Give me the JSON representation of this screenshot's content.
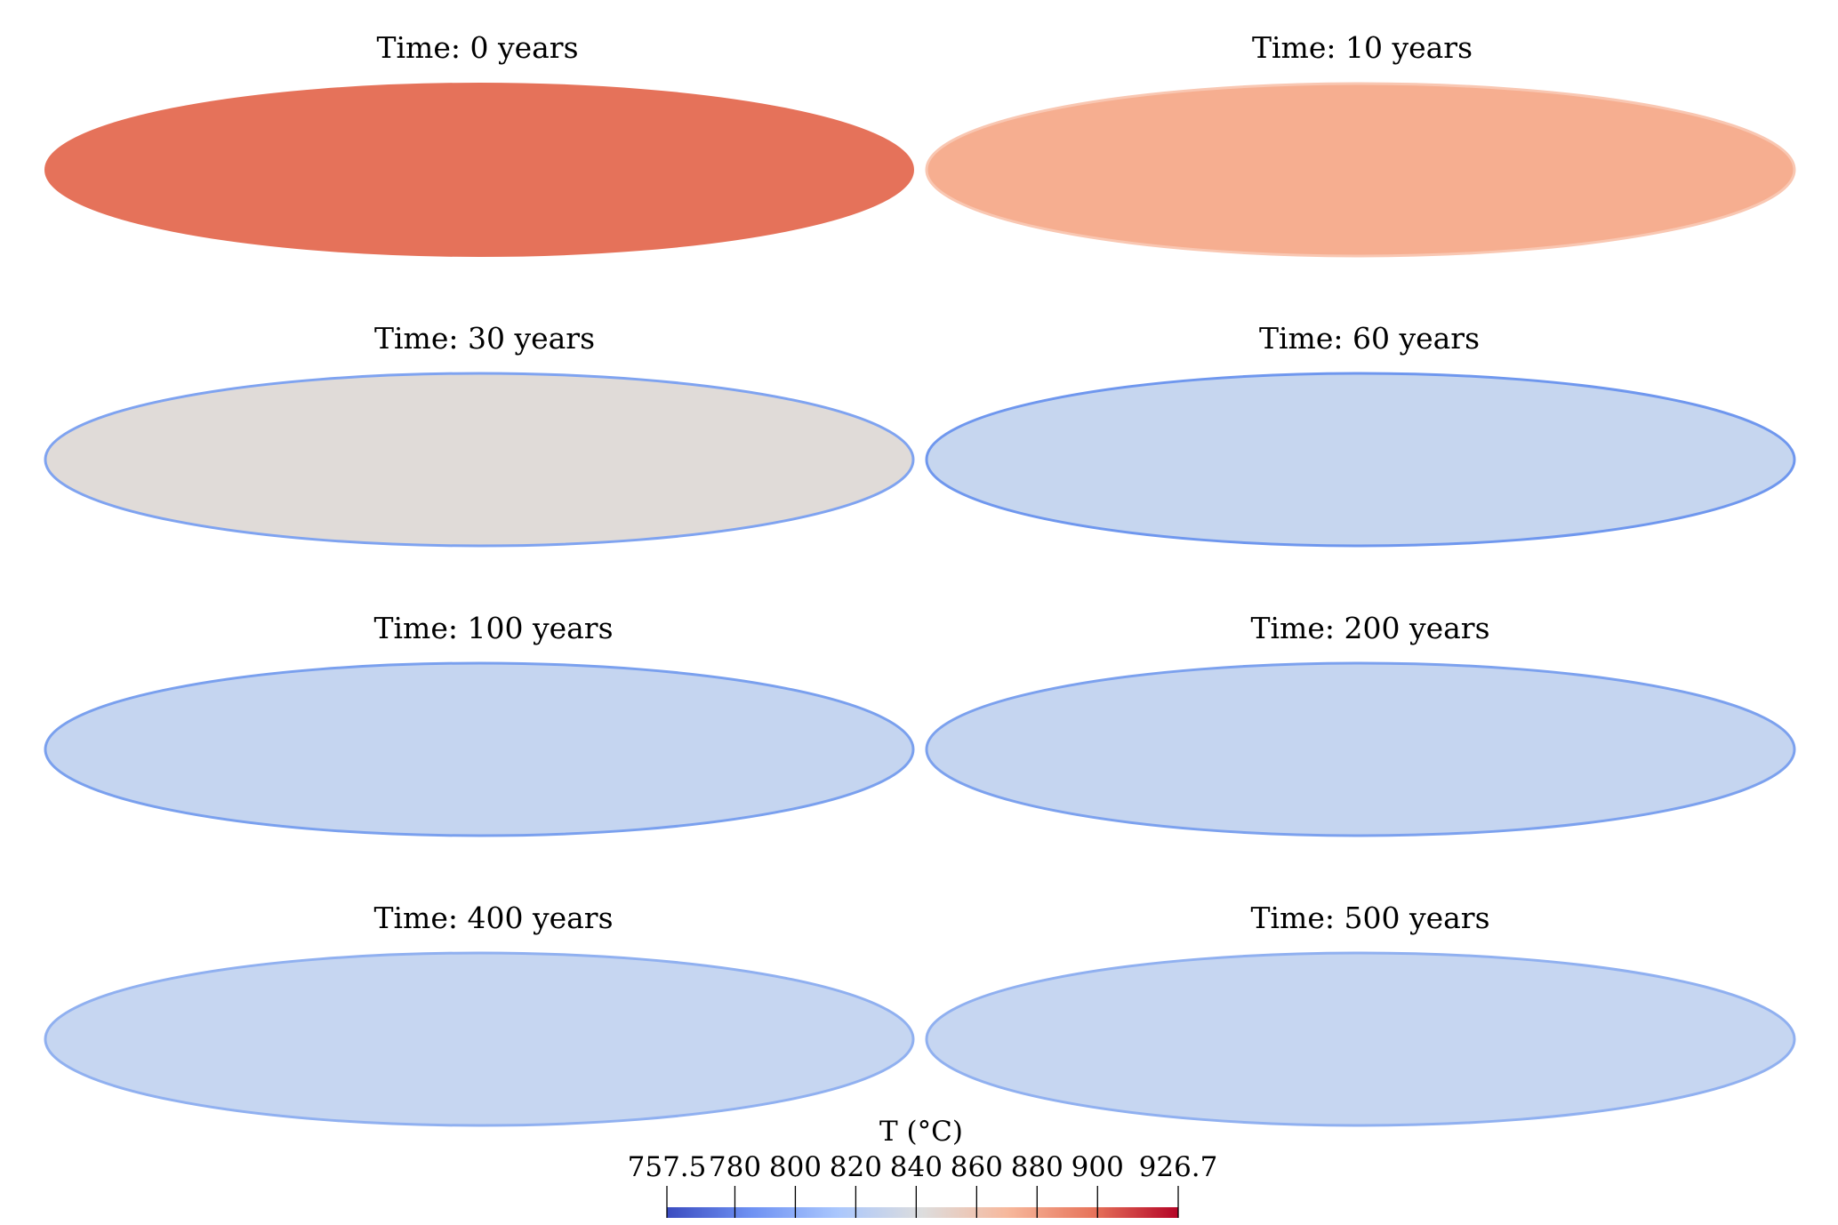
{
  "panels": [
    {
      "title": "Time: 0 years",
      "fill": "#e5725a",
      "edge": "#e5725a"
    },
    {
      "title": "Time: 10 years",
      "fill": "#f6ae90",
      "edge": "#f9c7b2"
    },
    {
      "title": "Time: 30 years",
      "fill": "#e0dbd8",
      "edge": "#7fa3f0"
    },
    {
      "title": "Time: 60 years",
      "fill": "#c6d6ef",
      "edge": "#6f97ee"
    },
    {
      "title": "Time: 100 years",
      "fill": "#c5d5f0",
      "edge": "#7aa0ee"
    },
    {
      "title": "Time: 200 years",
      "fill": "#c5d5f0",
      "edge": "#7ca1ee"
    },
    {
      "title": "Time: 400 years",
      "fill": "#c6d6f1",
      "edge": "#90b0f0"
    },
    {
      "title": "Time: 500 years",
      "fill": "#c6d6f1",
      "edge": "#90b0f0"
    }
  ],
  "colorbar": {
    "title": "T (°C)",
    "min": 757.5,
    "max": 926.7,
    "ticks": [
      "757.5",
      "780",
      "800",
      "820",
      "840",
      "860",
      "880",
      "900",
      "926.7"
    ],
    "tick_values": [
      757.5,
      780,
      800,
      820,
      840,
      860,
      880,
      900,
      926.7
    ],
    "colormap": [
      "#3b4cc0",
      "#6f92f3",
      "#aac7fd",
      "#dddddd",
      "#f7b89c",
      "#e7745b",
      "#b40426"
    ]
  }
}
